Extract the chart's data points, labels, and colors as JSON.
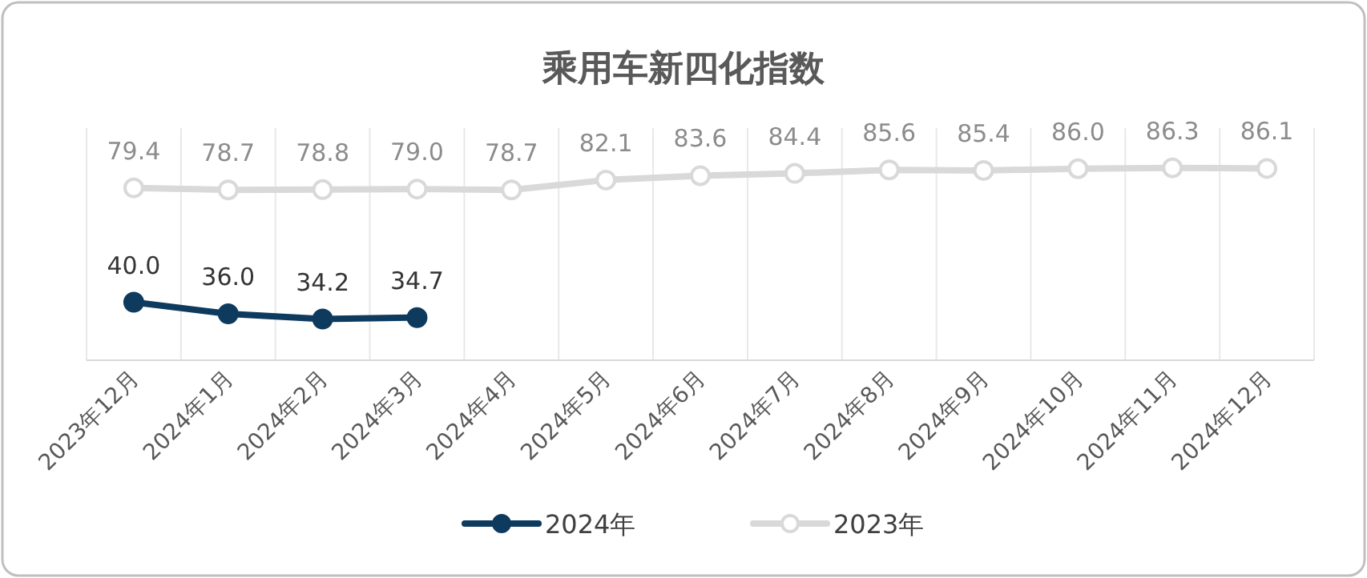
{
  "chart_data": {
    "type": "line",
    "title": "乘用车新四化指数",
    "categories": [
      "2023年12月",
      "2024年1月",
      "2024年2月",
      "2024年3月",
      "2024年4月",
      "2024年5月",
      "2024年6月",
      "2024年7月",
      "2024年8月",
      "2024年9月",
      "2024年10月",
      "2024年11月",
      "2024年12月"
    ],
    "series": [
      {
        "name": "2024年",
        "color": "#0e3a5e",
        "values": [
          40.0,
          36.0,
          34.2,
          34.7,
          null,
          null,
          null,
          null,
          null,
          null,
          null,
          null,
          null
        ],
        "value_labels": [
          "40.0",
          "36.0",
          "34.2",
          "34.7",
          null,
          null,
          null,
          null,
          null,
          null,
          null,
          null,
          null
        ]
      },
      {
        "name": "2023年",
        "color": "#d9d9d9",
        "values": [
          79.4,
          78.7,
          78.8,
          79.0,
          78.7,
          82.1,
          83.6,
          84.4,
          85.6,
          85.4,
          86.0,
          86.3,
          86.1
        ],
        "value_labels": [
          "79.4",
          "78.7",
          "78.8",
          "79.0",
          "78.7",
          "82.1",
          "83.6",
          "84.4",
          "85.6",
          "85.4",
          "86.0",
          "86.3",
          "86.1"
        ]
      }
    ],
    "ylim": [
      20,
      100
    ],
    "tick_labels": "x",
    "grid": "x",
    "legend": "bottom",
    "marker": "circle",
    "line_style": "solid"
  }
}
